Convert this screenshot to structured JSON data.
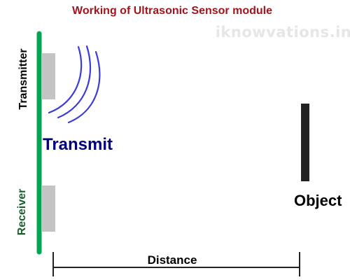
{
  "title": "Working of Ultrasonic Sensor module",
  "watermark": "iknowvations.in",
  "transmitter_label": "Transmitter",
  "receiver_label": "Receiver",
  "transmit_label": "Transmit",
  "object_label": "Object",
  "distance_label": "Distance",
  "colors": {
    "title": "#a3141e",
    "watermark": "#e6e6e6",
    "board": "#00a651",
    "transducer": "#c4c4c4",
    "waves": "#3b3bdc",
    "transmit_text": "#000080",
    "receiver_text": "#1a5e2a",
    "object": "#222222",
    "text": "#000000"
  },
  "icons": {
    "waves": "sound-wave-arcs-icon"
  }
}
